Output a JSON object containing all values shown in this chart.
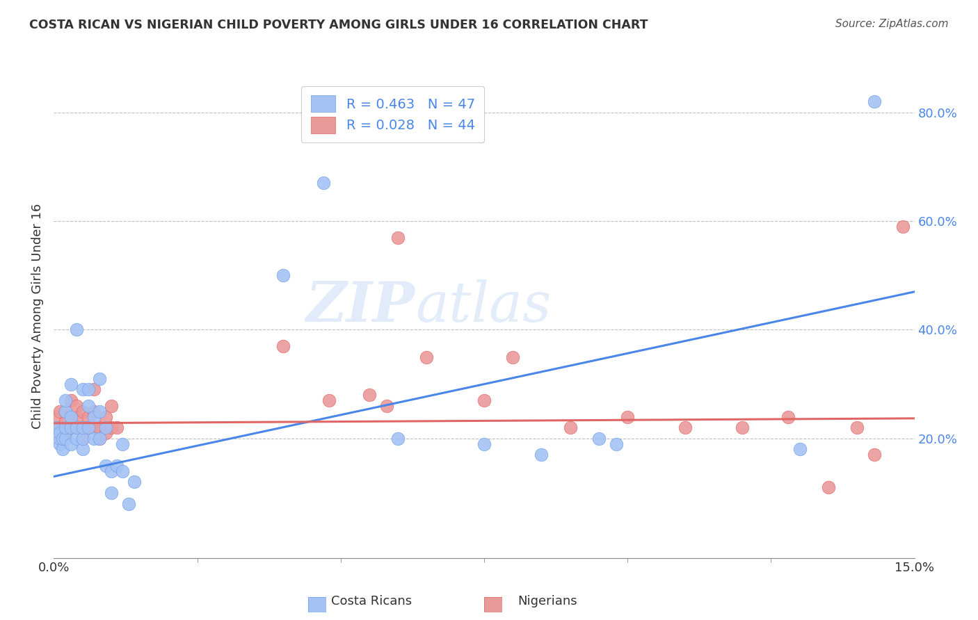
{
  "title": "COSTA RICAN VS NIGERIAN CHILD POVERTY AMONG GIRLS UNDER 16 CORRELATION CHART",
  "source": "Source: ZipAtlas.com",
  "ylabel_label": "Child Poverty Among Girls Under 16",
  "watermark_zip": "ZIP",
  "watermark_atlas": "atlas",
  "blue_color": "#a4c2f4",
  "pink_color": "#ea9999",
  "blue_edge": "#6d9eeb",
  "pink_edge": "#e06666",
  "line_blue": "#4a86e8",
  "line_pink": "#e06666",
  "background_color": "#ffffff",
  "grid_color": "#b7b7b7",
  "x_min": 0.0,
  "x_max": 0.15,
  "y_min": -0.02,
  "y_max": 0.87,
  "ytick_vals": [
    0.2,
    0.4,
    0.6,
    0.8
  ],
  "ytick_labels": [
    "20.0%",
    "40.0%",
    "60.0%",
    "80.0%"
  ],
  "xtick_vals": [
    0.0,
    0.15
  ],
  "xtick_labels": [
    "0.0%",
    "15.0%"
  ],
  "legend_r1": "R = 0.463",
  "legend_n1": "N = 47",
  "legend_r2": "R = 0.028",
  "legend_n2": "N = 44",
  "costa_rica_x": [
    0.0005,
    0.001,
    0.001,
    0.001,
    0.0015,
    0.0015,
    0.002,
    0.002,
    0.002,
    0.002,
    0.003,
    0.003,
    0.003,
    0.003,
    0.004,
    0.004,
    0.004,
    0.005,
    0.005,
    0.005,
    0.005,
    0.006,
    0.006,
    0.006,
    0.007,
    0.007,
    0.008,
    0.008,
    0.008,
    0.009,
    0.009,
    0.01,
    0.01,
    0.011,
    0.012,
    0.012,
    0.013,
    0.014,
    0.04,
    0.047,
    0.06,
    0.075,
    0.085,
    0.095,
    0.098,
    0.13,
    0.143
  ],
  "costa_rica_y": [
    0.22,
    0.19,
    0.2,
    0.21,
    0.18,
    0.2,
    0.2,
    0.22,
    0.25,
    0.27,
    0.19,
    0.22,
    0.24,
    0.3,
    0.2,
    0.22,
    0.4,
    0.18,
    0.2,
    0.22,
    0.29,
    0.22,
    0.26,
    0.29,
    0.2,
    0.24,
    0.2,
    0.25,
    0.31,
    0.15,
    0.22,
    0.1,
    0.14,
    0.15,
    0.14,
    0.19,
    0.08,
    0.12,
    0.5,
    0.67,
    0.2,
    0.19,
    0.17,
    0.2,
    0.19,
    0.18,
    0.82
  ],
  "nigeria_x": [
    0.0005,
    0.001,
    0.001,
    0.0015,
    0.002,
    0.002,
    0.002,
    0.003,
    0.003,
    0.004,
    0.004,
    0.004,
    0.005,
    0.005,
    0.005,
    0.006,
    0.006,
    0.007,
    0.007,
    0.007,
    0.008,
    0.008,
    0.009,
    0.009,
    0.01,
    0.01,
    0.011,
    0.04,
    0.048,
    0.055,
    0.058,
    0.06,
    0.065,
    0.075,
    0.08,
    0.09,
    0.1,
    0.11,
    0.12,
    0.128,
    0.135,
    0.14,
    0.143,
    0.148
  ],
  "nigeria_y": [
    0.24,
    0.22,
    0.25,
    0.2,
    0.21,
    0.23,
    0.25,
    0.22,
    0.27,
    0.22,
    0.24,
    0.26,
    0.2,
    0.22,
    0.25,
    0.22,
    0.24,
    0.22,
    0.25,
    0.29,
    0.2,
    0.22,
    0.21,
    0.24,
    0.22,
    0.26,
    0.22,
    0.37,
    0.27,
    0.28,
    0.26,
    0.57,
    0.35,
    0.27,
    0.35,
    0.22,
    0.24,
    0.22,
    0.22,
    0.24,
    0.11,
    0.22,
    0.17,
    0.59
  ],
  "blue_trendline_x": [
    0.0,
    0.15
  ],
  "blue_trendline_y": [
    0.13,
    0.47
  ],
  "pink_trendline_x": [
    0.0,
    0.15
  ],
  "pink_trendline_y": [
    0.228,
    0.237
  ]
}
